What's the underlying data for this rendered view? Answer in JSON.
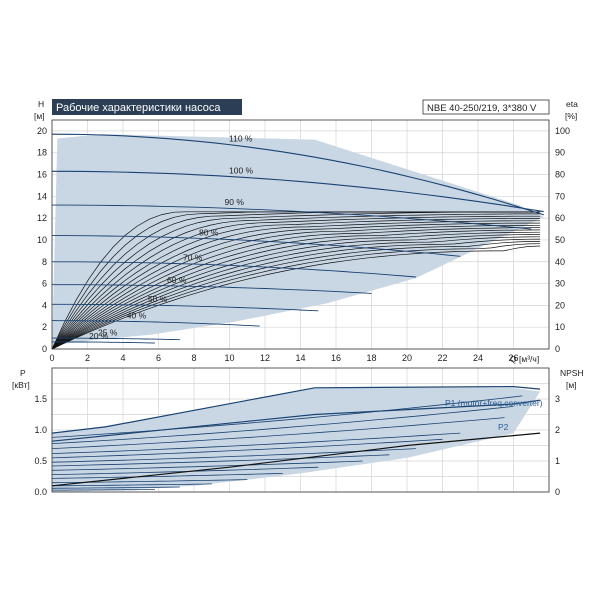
{
  "header": {
    "title": "Рабочие характеристики насоса",
    "model": "NBE 40-250/219, 3*380 V"
  },
  "chart_data": [
    {
      "type": "line",
      "title": "Рабочие характеристики насоса",
      "y_label": "H",
      "y_unit": "[м]",
      "y2_label": "eta",
      "y2_unit": "[%]",
      "x_label": "Q",
      "x_unit": "[м³/ч]",
      "xlim": [
        0,
        28
      ],
      "ylim": [
        0,
        21
      ],
      "y2lim": [
        0,
        105
      ],
      "x_ticks": [
        "0",
        "2",
        "4",
        "6",
        "8",
        "10",
        "12",
        "14",
        "16",
        "18",
        "20",
        "22",
        "24",
        "26"
      ],
      "y_ticks": [
        "0",
        "2",
        "4",
        "6",
        "8",
        "10",
        "12",
        "14",
        "16",
        "18",
        "20"
      ],
      "y2_ticks": [
        "0",
        "10",
        "20",
        "30",
        "40",
        "50",
        "60",
        "70",
        "80",
        "90",
        "100"
      ],
      "envelope": {
        "x": [
          0,
          0.3,
          2.8,
          14.8,
          26.3,
          27.7,
          20.5,
          15.5,
          10.3,
          5.5,
          2.8,
          0.3,
          0
        ],
        "y": [
          0,
          19.3,
          19.7,
          19.2,
          13.2,
          12.1,
          6.5,
          4.2,
          2.5,
          1.3,
          0.9,
          0.4,
          0
        ]
      },
      "speed_curves": [
        {
          "label": "110 %",
          "y0": 19.7,
          "y_end": 12.3,
          "x_end": 27.7
        },
        {
          "label": "100 %",
          "y0": 16.3,
          "y_end": 12.6,
          "x_end": 27.7
        },
        {
          "label": "90 %",
          "y0": 13.2,
          "y_end": 11.0,
          "x_end": 27.0
        },
        {
          "label": "80 %",
          "y0": 10.4,
          "y_end": 8.5,
          "x_end": 23.0
        },
        {
          "label": "70 %",
          "y0": 8.0,
          "y_end": 6.6,
          "x_end": 20.5
        },
        {
          "label": "60 %",
          "y0": 5.9,
          "y_end": 5.1,
          "x_end": 18.0
        },
        {
          "label": "50 %",
          "y0": 4.1,
          "y_end": 3.5,
          "x_end": 15.0
        },
        {
          "label": "40 %",
          "y0": 2.6,
          "y_end": 2.1,
          "x_end": 11.7
        },
        {
          "label": "25 %",
          "y0": 1.0,
          "y_end": 0.85,
          "x_end": 7.2
        },
        {
          "label": "20 %",
          "y0": 0.65,
          "y_end": 0.55,
          "x_end": 5.8
        }
      ],
      "efficiency_curves": {
        "peak_eta": [
          63,
          62,
          61,
          60,
          59,
          58,
          57,
          56,
          55,
          54,
          53,
          52,
          51,
          50,
          49,
          48,
          47,
          46,
          45
        ],
        "peak_x": [
          7.5,
          8.5,
          9.5,
          10.5,
          11.5,
          12.5,
          13.5,
          14.5,
          15.5,
          16.5,
          17.5,
          18.5,
          19.5,
          20.5,
          21.5,
          22.5,
          23.5,
          24.5,
          25.5
        ],
        "x_end": 27.5
      },
      "legend": "on-curves",
      "grid": true
    },
    {
      "type": "line",
      "y_label": "P",
      "y_unit": "[кВт]",
      "y2_label": "NPSH",
      "y2_unit": "[м]",
      "xlim": [
        0,
        28
      ],
      "ylim": [
        0,
        2.0
      ],
      "y2lim": [
        0,
        4
      ],
      "y_ticks": [
        "0.0",
        "0.5",
        "1.0",
        "1.5"
      ],
      "y2_ticks": [
        "0",
        "1",
        "2",
        "3"
      ],
      "envelope": {
        "x": [
          0,
          3.0,
          14.8,
          26.0,
          27.5,
          26.0,
          20.0,
          14.0,
          8.0,
          3.0,
          0
        ],
        "y": [
          0.95,
          1.05,
          1.68,
          1.68,
          1.62,
          0.95,
          0.55,
          0.3,
          0.1,
          0.02,
          0
        ]
      },
      "series": [
        {
          "name": "P1 (motor+freq.converter)",
          "x": [
            0,
            3,
            14.8,
            26,
            27.5
          ],
          "y": [
            0.95,
            1.05,
            1.68,
            1.7,
            1.66
          ]
        },
        {
          "name": "P2",
          "x": [
            0,
            14.8,
            26,
            27.5
          ],
          "y": [
            0.82,
            1.25,
            1.42,
            1.48
          ]
        },
        {
          "name": "NPSH",
          "x": [
            0,
            10,
            20,
            27.5
          ],
          "y2": [
            0.2,
            0.8,
            1.5,
            1.9
          ]
        }
      ],
      "scaled_lines": [
        {
          "y0": 0.88,
          "y_end": 1.55,
          "x_end": 26.5
        },
        {
          "y0": 0.78,
          "y_end": 1.38,
          "x_end": 26.0
        },
        {
          "y0": 0.7,
          "y_end": 1.2,
          "x_end": 25.5
        },
        {
          "y0": 0.62,
          "y_end": 0.95,
          "x_end": 23.0
        },
        {
          "y0": 0.55,
          "y_end": 0.85,
          "x_end": 22.0
        },
        {
          "y0": 0.48,
          "y_end": 0.7,
          "x_end": 20.5
        },
        {
          "y0": 0.42,
          "y_end": 0.6,
          "x_end": 19.0
        },
        {
          "y0": 0.35,
          "y_end": 0.5,
          "x_end": 17.5
        },
        {
          "y0": 0.28,
          "y_end": 0.4,
          "x_end": 15.0
        },
        {
          "y0": 0.22,
          "y_end": 0.3,
          "x_end": 13.0
        },
        {
          "y0": 0.15,
          "y_end": 0.2,
          "x_end": 11.0
        },
        {
          "y0": 0.1,
          "y_end": 0.13,
          "x_end": 9.0
        },
        {
          "y0": 0.06,
          "y_end": 0.08,
          "x_end": 7.2
        },
        {
          "y0": 0.03,
          "y_end": 0.04,
          "x_end": 5.8
        }
      ],
      "grid": true
    }
  ],
  "colors": {
    "envelope": "#c9d7e5",
    "curve": "#1b4270",
    "eta": "#111111",
    "title_bg": "#2b3e55",
    "label_blue": "#2a5b93"
  }
}
